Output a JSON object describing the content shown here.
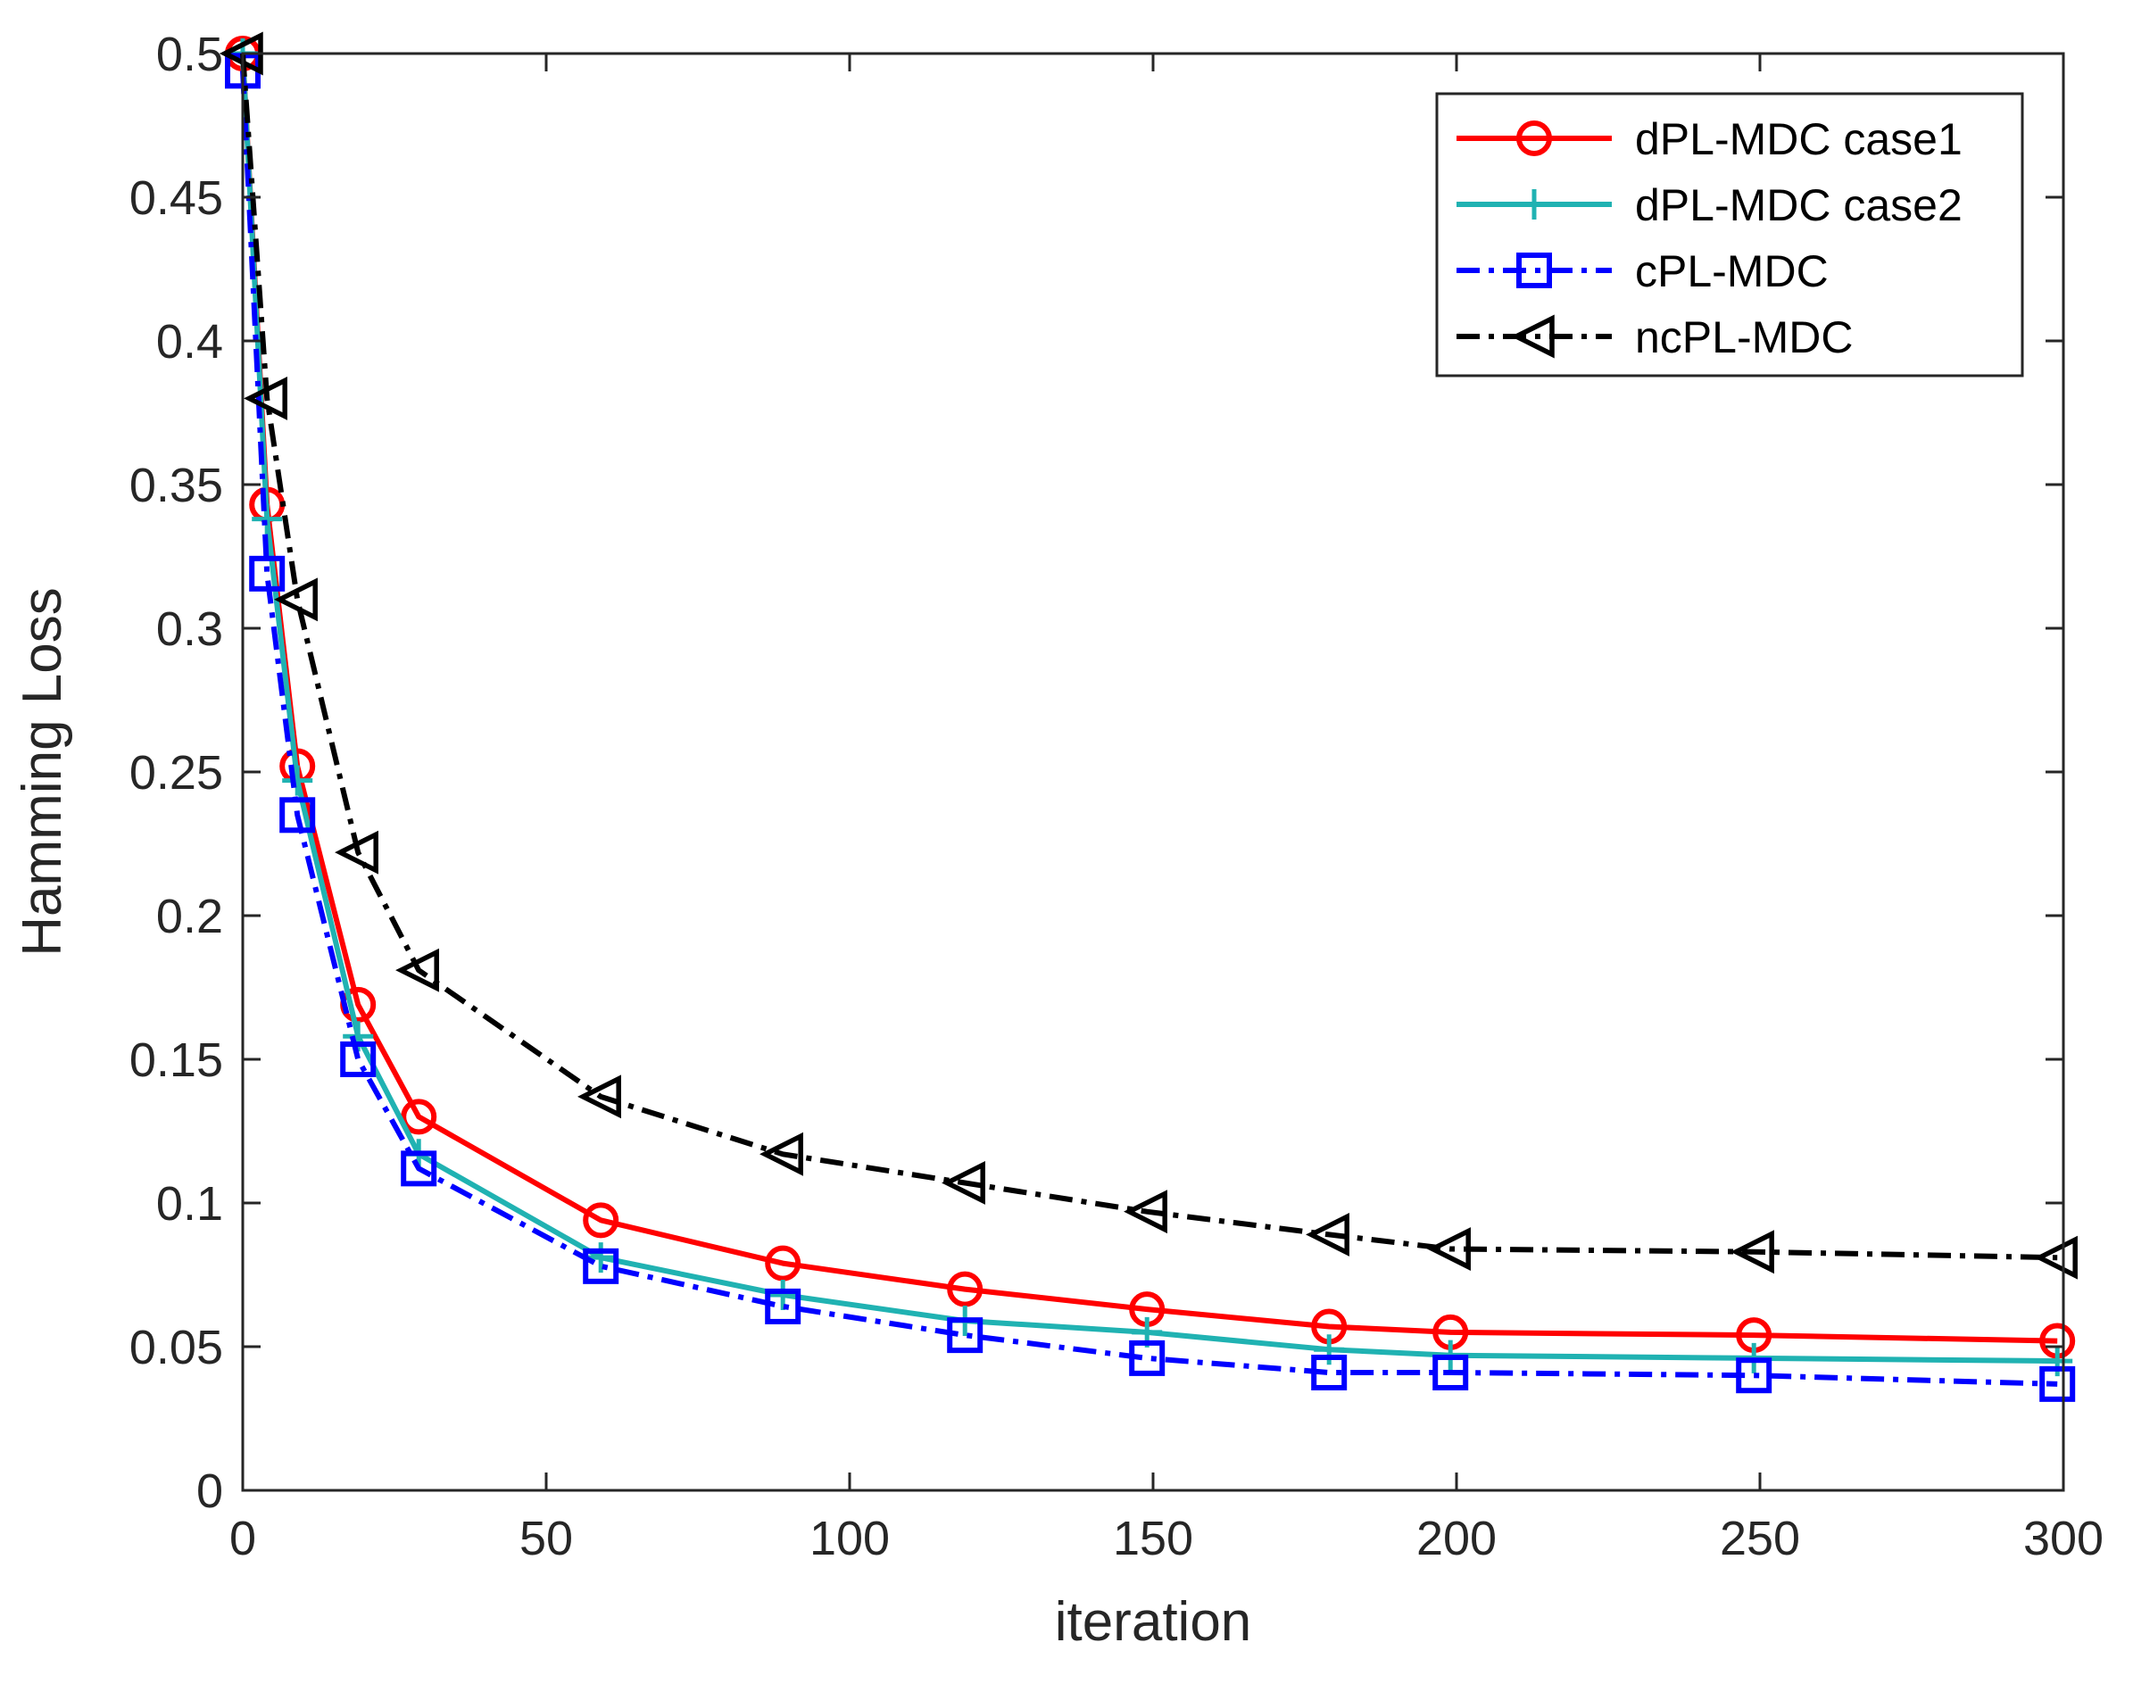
{
  "chart_data": {
    "type": "line",
    "title": "",
    "xlabel": "iteration",
    "ylabel": "Hamming Loss",
    "xlim": [
      0,
      300
    ],
    "ylim": [
      0,
      0.5
    ],
    "xticks": [
      0,
      50,
      100,
      150,
      200,
      250,
      300
    ],
    "yticks": [
      0,
      0.05,
      0.1,
      0.15,
      0.2,
      0.25,
      0.3,
      0.35,
      0.4,
      0.45,
      0.5
    ],
    "xtick_labels": [
      "0",
      "50",
      "100",
      "150",
      "200",
      "250",
      "300"
    ],
    "ytick_labels": [
      "0",
      "0.05",
      "0.1",
      "0.15",
      "0.2",
      "0.25",
      "0.3",
      "0.35",
      "0.4",
      "0.45",
      "0.5"
    ],
    "grid": false,
    "legend_position": "top-right",
    "series": [
      {
        "name": "dPL-MDC case1",
        "color": "#ff0000",
        "line_style": "solid",
        "marker": "circle",
        "x": [
          0,
          4,
          9,
          19,
          29,
          59,
          89,
          119,
          149,
          179,
          199,
          249,
          299
        ],
        "y": [
          0.5,
          0.343,
          0.252,
          0.169,
          0.13,
          0.094,
          0.079,
          0.07,
          0.063,
          0.057,
          0.055,
          0.054,
          0.052
        ]
      },
      {
        "name": "dPL-MDC case2",
        "color": "#20b2b2",
        "line_style": "solid",
        "marker": "plus",
        "x": [
          0,
          4,
          9,
          19,
          29,
          59,
          89,
          119,
          149,
          179,
          199,
          249,
          299
        ],
        "y": [
          0.5,
          0.338,
          0.247,
          0.158,
          0.117,
          0.081,
          0.068,
          0.059,
          0.055,
          0.049,
          0.047,
          0.046,
          0.045
        ]
      },
      {
        "name": "cPL-MDC",
        "color": "#0000ff",
        "line_style": "dashdot",
        "marker": "square",
        "x": [
          0,
          4,
          9,
          19,
          29,
          59,
          89,
          119,
          149,
          179,
          199,
          249,
          299
        ],
        "y": [
          0.494,
          0.319,
          0.235,
          0.15,
          0.112,
          0.078,
          0.064,
          0.054,
          0.046,
          0.041,
          0.041,
          0.04,
          0.037
        ]
      },
      {
        "name": "ncPL-MDC",
        "color": "#000000",
        "line_style": "dashdot",
        "marker": "triangle-left",
        "x": [
          0,
          4,
          9,
          19,
          29,
          59,
          89,
          119,
          149,
          179,
          199,
          249,
          299
        ],
        "y": [
          0.5,
          0.38,
          0.31,
          0.222,
          0.181,
          0.137,
          0.117,
          0.107,
          0.097,
          0.089,
          0.084,
          0.083,
          0.081
        ]
      }
    ]
  }
}
